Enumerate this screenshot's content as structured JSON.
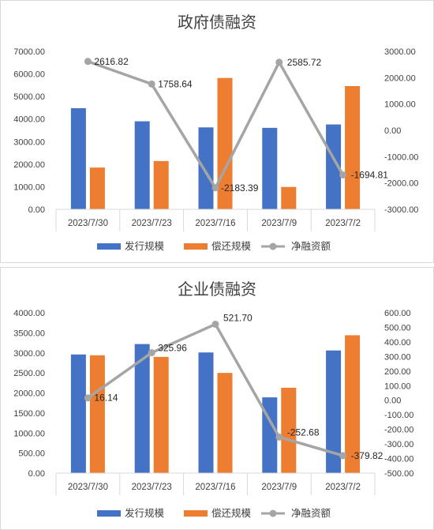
{
  "chart_data": [
    {
      "type": "bar",
      "title": "政府债融资",
      "categories": [
        "2023/7/30",
        "2023/7/23",
        "2023/7/16",
        "2023/7/9",
        "2023/7/2"
      ],
      "ylim": [
        0,
        7000
      ],
      "y2lim": [
        -3000,
        3000
      ],
      "yticks": [
        "7000.00",
        "6000.00",
        "5000.00",
        "4000.00",
        "3000.00",
        "2000.00",
        "1000.00",
        "0.00"
      ],
      "y2ticks": [
        "3000.00",
        "2000.00",
        "1000.00",
        "0.00",
        "-1000.00",
        "-2000.00",
        "-3000.00"
      ],
      "grid": false,
      "legend_position": "bottom",
      "series": [
        {
          "name": "发行规模",
          "type": "bar",
          "axis": "left",
          "color": "#4472C4",
          "values": [
            4480,
            3900,
            3630,
            3610,
            3760
          ]
        },
        {
          "name": "偿还规模",
          "type": "bar",
          "axis": "left",
          "color": "#ED7D31",
          "values": [
            1850,
            2140,
            5820,
            990,
            5460
          ]
        },
        {
          "name": "净融资额",
          "type": "line",
          "axis": "right",
          "color": "#A5A5A5",
          "values": [
            2616.82,
            1758.64,
            -2183.39,
            2585.72,
            -1694.81
          ],
          "labels": [
            "2616.82",
            "1758.64",
            "-2183.39",
            "2585.72",
            "-1694.81"
          ]
        }
      ]
    },
    {
      "type": "bar",
      "title": "企业债融资",
      "categories": [
        "2023/7/30",
        "2023/7/23",
        "2023/7/16",
        "2023/7/9",
        "2023/7/2"
      ],
      "ylim": [
        0,
        4000
      ],
      "y2lim": [
        -500,
        600
      ],
      "yticks": [
        "4000.00",
        "3500.00",
        "3000.00",
        "2500.00",
        "2000.00",
        "1500.00",
        "1000.00",
        "500.00",
        "0.00"
      ],
      "y2ticks": [
        "600.00",
        "500.00",
        "400.00",
        "300.00",
        "200.00",
        "100.00",
        "0.00",
        "-100.00",
        "-200.00",
        "-300.00",
        "-400.00",
        "-500.00"
      ],
      "grid": false,
      "legend_position": "bottom",
      "series": [
        {
          "name": "发行规模",
          "type": "bar",
          "axis": "left",
          "color": "#4472C4",
          "values": [
            2960,
            3220,
            3010,
            1890,
            3060
          ]
        },
        {
          "name": "偿还规模",
          "type": "bar",
          "axis": "left",
          "color": "#ED7D31",
          "values": [
            2940,
            2900,
            2500,
            2130,
            3440
          ]
        },
        {
          "name": "净融资额",
          "type": "line",
          "axis": "right",
          "color": "#A5A5A5",
          "values": [
            16.14,
            325.96,
            521.7,
            -252.68,
            -379.82
          ],
          "labels": [
            "16.14",
            "325.96",
            "521.70",
            "-252.68",
            "-379.82"
          ]
        }
      ]
    }
  ]
}
